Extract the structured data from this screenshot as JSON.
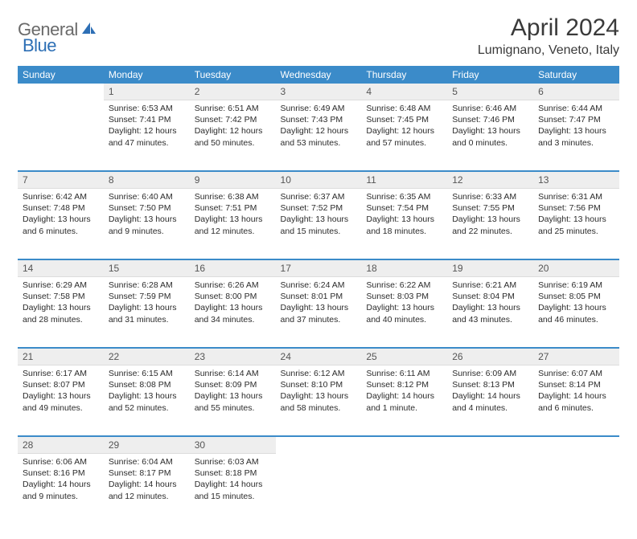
{
  "brand": {
    "general": "General",
    "blue": "Blue"
  },
  "title": "April 2024",
  "location": "Lumignano, Veneto, Italy",
  "colors": {
    "header_bg": "#3b8bc9",
    "header_text": "#ffffff",
    "daynum_bg": "#eeeeee",
    "daynum_text": "#555555",
    "body_text": "#2b2b2b",
    "logo_gray": "#6a6a6a",
    "logo_blue": "#2d6fb5",
    "separator": "#3b8bc9"
  },
  "weekdays": [
    "Sunday",
    "Monday",
    "Tuesday",
    "Wednesday",
    "Thursday",
    "Friday",
    "Saturday"
  ],
  "weeks": [
    [
      {
        "n": "",
        "sr": "",
        "ss": "",
        "dl": ""
      },
      {
        "n": "1",
        "sr": "Sunrise: 6:53 AM",
        "ss": "Sunset: 7:41 PM",
        "dl": "Daylight: 12 hours and 47 minutes."
      },
      {
        "n": "2",
        "sr": "Sunrise: 6:51 AM",
        "ss": "Sunset: 7:42 PM",
        "dl": "Daylight: 12 hours and 50 minutes."
      },
      {
        "n": "3",
        "sr": "Sunrise: 6:49 AM",
        "ss": "Sunset: 7:43 PM",
        "dl": "Daylight: 12 hours and 53 minutes."
      },
      {
        "n": "4",
        "sr": "Sunrise: 6:48 AM",
        "ss": "Sunset: 7:45 PM",
        "dl": "Daylight: 12 hours and 57 minutes."
      },
      {
        "n": "5",
        "sr": "Sunrise: 6:46 AM",
        "ss": "Sunset: 7:46 PM",
        "dl": "Daylight: 13 hours and 0 minutes."
      },
      {
        "n": "6",
        "sr": "Sunrise: 6:44 AM",
        "ss": "Sunset: 7:47 PM",
        "dl": "Daylight: 13 hours and 3 minutes."
      }
    ],
    [
      {
        "n": "7",
        "sr": "Sunrise: 6:42 AM",
        "ss": "Sunset: 7:48 PM",
        "dl": "Daylight: 13 hours and 6 minutes."
      },
      {
        "n": "8",
        "sr": "Sunrise: 6:40 AM",
        "ss": "Sunset: 7:50 PM",
        "dl": "Daylight: 13 hours and 9 minutes."
      },
      {
        "n": "9",
        "sr": "Sunrise: 6:38 AM",
        "ss": "Sunset: 7:51 PM",
        "dl": "Daylight: 13 hours and 12 minutes."
      },
      {
        "n": "10",
        "sr": "Sunrise: 6:37 AM",
        "ss": "Sunset: 7:52 PM",
        "dl": "Daylight: 13 hours and 15 minutes."
      },
      {
        "n": "11",
        "sr": "Sunrise: 6:35 AM",
        "ss": "Sunset: 7:54 PM",
        "dl": "Daylight: 13 hours and 18 minutes."
      },
      {
        "n": "12",
        "sr": "Sunrise: 6:33 AM",
        "ss": "Sunset: 7:55 PM",
        "dl": "Daylight: 13 hours and 22 minutes."
      },
      {
        "n": "13",
        "sr": "Sunrise: 6:31 AM",
        "ss": "Sunset: 7:56 PM",
        "dl": "Daylight: 13 hours and 25 minutes."
      }
    ],
    [
      {
        "n": "14",
        "sr": "Sunrise: 6:29 AM",
        "ss": "Sunset: 7:58 PM",
        "dl": "Daylight: 13 hours and 28 minutes."
      },
      {
        "n": "15",
        "sr": "Sunrise: 6:28 AM",
        "ss": "Sunset: 7:59 PM",
        "dl": "Daylight: 13 hours and 31 minutes."
      },
      {
        "n": "16",
        "sr": "Sunrise: 6:26 AM",
        "ss": "Sunset: 8:00 PM",
        "dl": "Daylight: 13 hours and 34 minutes."
      },
      {
        "n": "17",
        "sr": "Sunrise: 6:24 AM",
        "ss": "Sunset: 8:01 PM",
        "dl": "Daylight: 13 hours and 37 minutes."
      },
      {
        "n": "18",
        "sr": "Sunrise: 6:22 AM",
        "ss": "Sunset: 8:03 PM",
        "dl": "Daylight: 13 hours and 40 minutes."
      },
      {
        "n": "19",
        "sr": "Sunrise: 6:21 AM",
        "ss": "Sunset: 8:04 PM",
        "dl": "Daylight: 13 hours and 43 minutes."
      },
      {
        "n": "20",
        "sr": "Sunrise: 6:19 AM",
        "ss": "Sunset: 8:05 PM",
        "dl": "Daylight: 13 hours and 46 minutes."
      }
    ],
    [
      {
        "n": "21",
        "sr": "Sunrise: 6:17 AM",
        "ss": "Sunset: 8:07 PM",
        "dl": "Daylight: 13 hours and 49 minutes."
      },
      {
        "n": "22",
        "sr": "Sunrise: 6:15 AM",
        "ss": "Sunset: 8:08 PM",
        "dl": "Daylight: 13 hours and 52 minutes."
      },
      {
        "n": "23",
        "sr": "Sunrise: 6:14 AM",
        "ss": "Sunset: 8:09 PM",
        "dl": "Daylight: 13 hours and 55 minutes."
      },
      {
        "n": "24",
        "sr": "Sunrise: 6:12 AM",
        "ss": "Sunset: 8:10 PM",
        "dl": "Daylight: 13 hours and 58 minutes."
      },
      {
        "n": "25",
        "sr": "Sunrise: 6:11 AM",
        "ss": "Sunset: 8:12 PM",
        "dl": "Daylight: 14 hours and 1 minute."
      },
      {
        "n": "26",
        "sr": "Sunrise: 6:09 AM",
        "ss": "Sunset: 8:13 PM",
        "dl": "Daylight: 14 hours and 4 minutes."
      },
      {
        "n": "27",
        "sr": "Sunrise: 6:07 AM",
        "ss": "Sunset: 8:14 PM",
        "dl": "Daylight: 14 hours and 6 minutes."
      }
    ],
    [
      {
        "n": "28",
        "sr": "Sunrise: 6:06 AM",
        "ss": "Sunset: 8:16 PM",
        "dl": "Daylight: 14 hours and 9 minutes."
      },
      {
        "n": "29",
        "sr": "Sunrise: 6:04 AM",
        "ss": "Sunset: 8:17 PM",
        "dl": "Daylight: 14 hours and 12 minutes."
      },
      {
        "n": "30",
        "sr": "Sunrise: 6:03 AM",
        "ss": "Sunset: 8:18 PM",
        "dl": "Daylight: 14 hours and 15 minutes."
      },
      {
        "n": "",
        "sr": "",
        "ss": "",
        "dl": ""
      },
      {
        "n": "",
        "sr": "",
        "ss": "",
        "dl": ""
      },
      {
        "n": "",
        "sr": "",
        "ss": "",
        "dl": ""
      },
      {
        "n": "",
        "sr": "",
        "ss": "",
        "dl": ""
      }
    ]
  ]
}
